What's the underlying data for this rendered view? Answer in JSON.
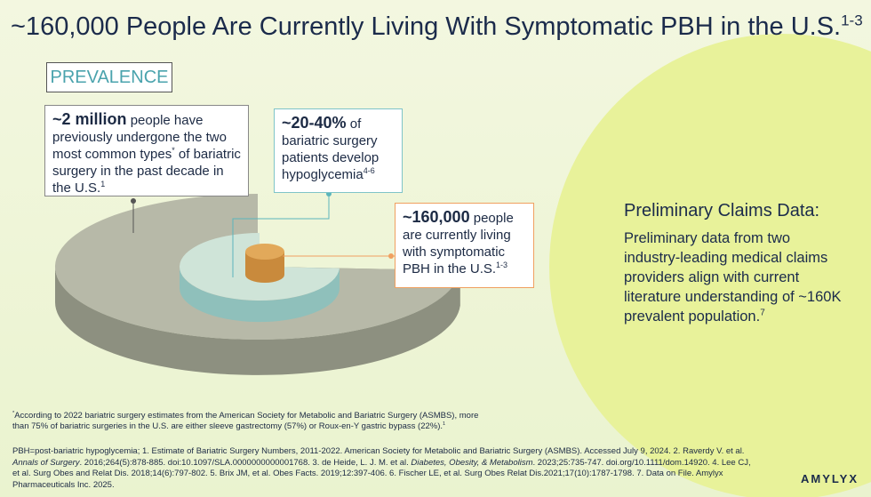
{
  "title": [
    {
      "text": "~160,000 People Are Currently Living With Symptomatic PBH in the U.S.",
      "kind": "normal"
    },
    {
      "text": "1-3",
      "kind": "sup"
    }
  ],
  "prevalence_label": "PREVALENCE",
  "callouts": [
    {
      "parts": [
        {
          "text": "~2 million",
          "kind": "bold"
        },
        {
          "text": " people have previously undergone the two most common types",
          "kind": "normal"
        },
        {
          "text": "*",
          "kind": "sup"
        },
        {
          "text": " of bariatric surgery in the past decade in the U.S.",
          "kind": "normal"
        },
        {
          "text": "1",
          "kind": "sup"
        }
      ]
    },
    {
      "parts": [
        {
          "text": "~20-40%",
          "kind": "bold"
        },
        {
          "text": " of bariatric surgery patients develop hypoglycemia",
          "kind": "normal"
        },
        {
          "text": "4-6",
          "kind": "sup"
        }
      ]
    },
    {
      "parts": [
        {
          "text": "~160,000",
          "kind": "bold"
        },
        {
          "text": " people are currently living with symptomatic PBH in the U.S.",
          "kind": "normal"
        },
        {
          "text": "1-3",
          "kind": "sup"
        }
      ]
    }
  ],
  "claims": {
    "heading": "Preliminary Claims Data:",
    "body": [
      {
        "text": "Preliminary data from two industry-leading medical claims providers align with current literature understanding of ~160K prevalent population.",
        "kind": "normal"
      },
      {
        "text": "7",
        "kind": "sup"
      }
    ]
  },
  "footnote": [
    {
      "text": "*",
      "kind": "sup"
    },
    {
      "text": "According to 2022 bariatric surgery estimates from the American Society for Metabolic and Bariatric Surgery (ASMBS), more than 75% of bariatric surgeries in the U.S. are either sleeve gastrectomy (57%) or Roux-en-Y gastric bypass (22%).",
      "kind": "normal"
    },
    {
      "text": "1",
      "kind": "sup"
    }
  ],
  "references": [
    {
      "text": "PBH=post-bariatric hypoglycemia; 1. Estimate of Bariatric Surgery Numbers, 2011-2022. American Society for Metabolic and Bariatric Surgery (ASMBS). Accessed July 9, 2024. 2. Raverdy V. et al. ",
      "kind": "normal"
    },
    {
      "text": "Annals of Surgery",
      "kind": "italic"
    },
    {
      "text": ". 2016;264(5):878-885. doi:10.1097/SLA.0000000000001768. 3. de Heide, L. J. M. et al. ",
      "kind": "normal"
    },
    {
      "text": "Diabetes, Obesity, & Metabolism",
      "kind": "italic"
    },
    {
      "text": ". 2023;25:735-747. doi.org/10.1111/dom.14920. 4. Lee CJ, et al. Surg Obes and Relat Dis. 2018;14(6):797-802. 5. Brix JM, et al. Obes Facts. 2019;12:397-406. 6. Fischer LE, et al. Surg Obes Relat Dis.2021;17(10):1787-1798. 7. Data on File. Amylyx Pharmaceuticals Inc. 2025.",
      "kind": "normal"
    }
  ],
  "logo": "AMYLYX"
}
